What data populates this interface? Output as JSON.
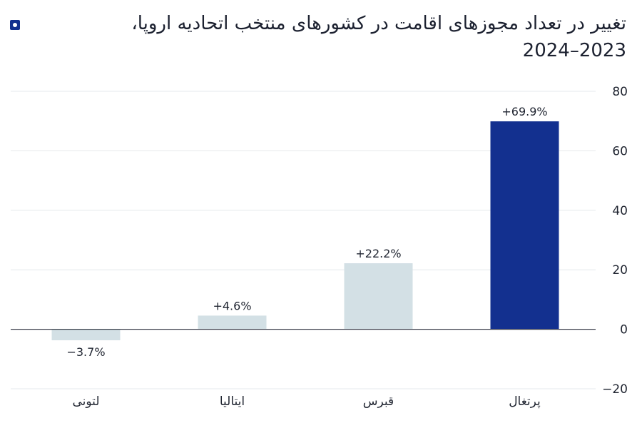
{
  "title": "تغییر در تعداد مجوزهای اقامت در کشورهای منتخب اتحادیه اروپا، 2023–2024",
  "colors": {
    "bar_default": "#d3e0e5",
    "bar_highlight": "#13308f",
    "grid": "#e6e8ec",
    "zero_line": "#3a3f4a",
    "text": "#1f2430"
  },
  "chart_data": {
    "type": "bar",
    "categories": [
      "لتونی",
      "ایتالیا",
      "قبرس",
      "پرتغال"
    ],
    "values": [
      -3.7,
      4.6,
      22.2,
      69.9
    ],
    "data_labels": [
      "−3.7%",
      "+4.6%",
      "+22.2%",
      "+69.9%"
    ],
    "highlight": "پرتغال",
    "ylim": [
      -20,
      80
    ],
    "yticks": [
      80,
      60,
      40,
      20,
      0,
      -20
    ],
    "ytick_labels": [
      "80",
      "60",
      "40",
      "20",
      "0",
      "−20"
    ],
    "y_axis_side": "right",
    "grid": true,
    "xlabel": "",
    "ylabel": ""
  }
}
